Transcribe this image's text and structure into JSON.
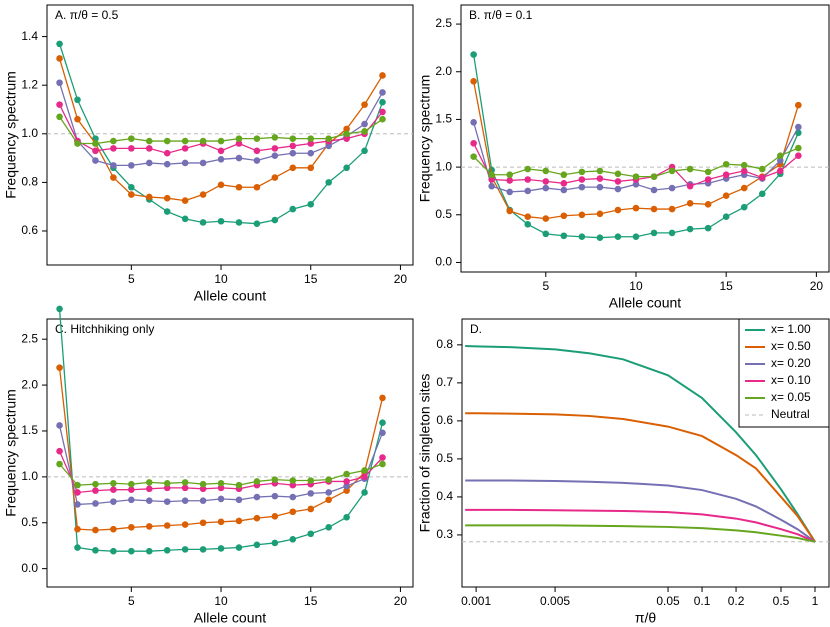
{
  "chart_data": [
    {
      "type": "line",
      "markers": true,
      "title": "A. π/θ = 0.5",
      "x_label": "Allele count",
      "y_label": "Frequency spectrum",
      "x": [
        1,
        2,
        3,
        4,
        5,
        6,
        7,
        8,
        9,
        10,
        11,
        12,
        13,
        14,
        15,
        16,
        17,
        18,
        19
      ],
      "xlim": [
        0.3,
        20.7
      ],
      "xticks": [
        5,
        10,
        15,
        20
      ],
      "ylim": [
        0.46,
        1.53
      ],
      "yticks": [
        0.6,
        0.8,
        {
          "value": 1,
          "label": "1.0"
        },
        1.2,
        1.4
      ],
      "reference_line": 1,
      "series": [
        {
          "color": "#1b9e77",
          "values": [
            1.37,
            1.14,
            0.98,
            0.86,
            0.78,
            0.73,
            0.68,
            0.65,
            0.635,
            0.64,
            0.635,
            0.63,
            0.645,
            0.69,
            0.71,
            0.8,
            0.86,
            0.93,
            1.13
          ]
        },
        {
          "color": "#d95f02",
          "values": [
            1.31,
            1.06,
            0.96,
            0.82,
            0.75,
            0.74,
            0.735,
            0.725,
            0.75,
            0.79,
            0.78,
            0.78,
            0.82,
            0.86,
            0.86,
            0.96,
            1.02,
            1.12,
            1.24
          ]
        },
        {
          "color": "#7570b3",
          "values": [
            1.21,
            0.97,
            0.89,
            0.87,
            0.87,
            0.88,
            0.875,
            0.88,
            0.88,
            0.895,
            0.9,
            0.89,
            0.91,
            0.92,
            0.92,
            0.95,
            0.99,
            1.04,
            1.17
          ]
        },
        {
          "color": "#e7298a",
          "values": [
            1.12,
            0.97,
            0.93,
            0.94,
            0.94,
            0.94,
            0.92,
            0.94,
            0.96,
            0.93,
            0.96,
            0.93,
            0.94,
            0.95,
            0.96,
            0.97,
            0.98,
            1.0,
            1.09
          ]
        },
        {
          "color": "#66a61e",
          "values": [
            1.07,
            0.96,
            0.96,
            0.97,
            0.98,
            0.97,
            0.97,
            0.97,
            0.97,
            0.97,
            0.98,
            0.98,
            0.985,
            0.98,
            0.98,
            0.98,
            1.0,
            1.01,
            1.06
          ]
        }
      ]
    },
    {
      "type": "line",
      "markers": true,
      "title": "B. π/θ = 0.1",
      "x_label": "Allele count",
      "y_label": "Frequency spectrum",
      "x": [
        1,
        2,
        3,
        4,
        5,
        6,
        7,
        8,
        9,
        10,
        11,
        12,
        13,
        14,
        15,
        16,
        17,
        18,
        19
      ],
      "xlim": [
        0.3,
        20.7
      ],
      "xticks": [
        5,
        10,
        15,
        20
      ],
      "ylim": [
        -0.1,
        2.7
      ],
      "yticks": [
        {
          "value": 0,
          "label": "0.0"
        },
        0.5,
        {
          "value": 1,
          "label": "1.0"
        },
        1.5,
        {
          "value": 2,
          "label": "2.0"
        },
        2.5
      ],
      "reference_line": 1,
      "series": [
        {
          "color": "#1b9e77",
          "values": [
            2.18,
            0.97,
            0.55,
            0.4,
            0.3,
            0.28,
            0.27,
            0.26,
            0.27,
            0.27,
            0.31,
            0.31,
            0.35,
            0.36,
            0.48,
            0.58,
            0.72,
            0.93,
            1.36
          ]
        },
        {
          "color": "#d95f02",
          "values": [
            1.9,
            0.9,
            0.54,
            0.48,
            0.46,
            0.49,
            0.5,
            0.51,
            0.55,
            0.57,
            0.56,
            0.56,
            0.62,
            0.61,
            0.7,
            0.78,
            0.9,
            1.03,
            1.65
          ]
        },
        {
          "color": "#7570b3",
          "values": [
            1.47,
            0.8,
            0.74,
            0.75,
            0.78,
            0.76,
            0.79,
            0.79,
            0.77,
            0.82,
            0.76,
            0.78,
            0.82,
            0.83,
            0.88,
            0.92,
            0.88,
            1.07,
            1.42
          ]
        },
        {
          "color": "#e7298a",
          "values": [
            1.25,
            0.87,
            0.86,
            0.87,
            0.85,
            0.83,
            0.87,
            0.88,
            0.85,
            0.87,
            0.9,
            1.0,
            0.8,
            0.87,
            0.92,
            0.96,
            0.89,
            0.96,
            1.12
          ]
        },
        {
          "color": "#66a61e",
          "values": [
            1.11,
            0.92,
            0.92,
            0.98,
            0.96,
            0.92,
            0.95,
            0.96,
            0.93,
            0.9,
            0.9,
            0.96,
            0.98,
            0.95,
            1.03,
            1.02,
            0.98,
            1.12,
            1.2
          ]
        }
      ]
    },
    {
      "type": "line",
      "markers": true,
      "title": "C. Hitchhiking only",
      "x_label": "Allele count",
      "y_label": "Frequency spectrum",
      "x": [
        1,
        2,
        3,
        4,
        5,
        6,
        7,
        8,
        9,
        10,
        11,
        12,
        13,
        14,
        15,
        16,
        17,
        18,
        19
      ],
      "xlim": [
        0.3,
        20.7
      ],
      "xticks": [
        5,
        10,
        15,
        20
      ],
      "ylim": [
        -0.2,
        2.72
      ],
      "yticks": [
        {
          "value": 0,
          "label": "0.0"
        },
        0.5,
        {
          "value": 1,
          "label": "1.0"
        },
        1.5,
        {
          "value": 2,
          "label": "2.0"
        },
        2.5
      ],
      "reference_line": 1,
      "series": [
        {
          "color": "#1b9e77",
          "values": [
            2.83,
            0.23,
            0.2,
            0.19,
            0.19,
            0.19,
            0.2,
            0.21,
            0.21,
            0.22,
            0.23,
            0.26,
            0.28,
            0.32,
            0.38,
            0.45,
            0.56,
            0.83,
            1.59
          ]
        },
        {
          "color": "#d95f02",
          "values": [
            2.19,
            0.43,
            0.42,
            0.43,
            0.45,
            0.46,
            0.47,
            0.48,
            0.5,
            0.51,
            0.52,
            0.55,
            0.57,
            0.62,
            0.65,
            0.75,
            0.85,
            1.05,
            1.86
          ]
        },
        {
          "color": "#7570b3",
          "values": [
            1.56,
            0.7,
            0.71,
            0.73,
            0.75,
            0.74,
            0.73,
            0.74,
            0.74,
            0.76,
            0.75,
            0.78,
            0.79,
            0.78,
            0.82,
            0.83,
            0.9,
            0.98,
            1.48
          ]
        },
        {
          "color": "#e7298a",
          "values": [
            1.28,
            0.83,
            0.85,
            0.86,
            0.86,
            0.87,
            0.88,
            0.88,
            0.87,
            0.88,
            0.87,
            0.91,
            0.93,
            0.91,
            0.92,
            0.95,
            0.95,
            1.0,
            1.21
          ]
        },
        {
          "color": "#66a61e",
          "values": [
            1.14,
            0.91,
            0.92,
            0.93,
            0.92,
            0.94,
            0.93,
            0.94,
            0.92,
            0.93,
            0.91,
            0.95,
            0.97,
            0.96,
            0.96,
            0.97,
            1.03,
            1.07,
            1.14
          ]
        }
      ]
    },
    {
      "type": "line",
      "markers": false,
      "title": "D.",
      "x_label": "π/θ",
      "y_label": "Fraction of singleton sites",
      "xscale": "log",
      "x": [
        0.0008,
        0.001,
        0.002,
        0.005,
        0.01,
        0.02,
        0.05,
        0.1,
        0.2,
        0.3,
        0.5,
        0.7,
        1
      ],
      "xlim": [
        0.00075,
        1.33
      ],
      "xticks": [
        0.001,
        0.005,
        0.05,
        0.1,
        0.2,
        0.5,
        1
      ],
      "ylim": [
        0.163,
        0.868
      ],
      "yticks": [
        0.3,
        0.4,
        0.5,
        0.6,
        0.7,
        0.8
      ],
      "reference_line": 0.282,
      "reference_label": "Neutral",
      "legend": "top-right",
      "series": [
        {
          "name": "x= 1.00",
          "color": "#1b9e77",
          "values": [
            0.797,
            0.796,
            0.794,
            0.788,
            0.778,
            0.762,
            0.72,
            0.66,
            0.57,
            0.51,
            0.42,
            0.355,
            0.282
          ]
        },
        {
          "name": "x= 0.50",
          "color": "#d95f02",
          "values": [
            0.62,
            0.62,
            0.619,
            0.617,
            0.613,
            0.605,
            0.585,
            0.56,
            0.51,
            0.475,
            0.4,
            0.35,
            0.282
          ]
        },
        {
          "name": "x= 0.20",
          "color": "#7570b3",
          "values": [
            0.443,
            0.443,
            0.443,
            0.442,
            0.44,
            0.437,
            0.43,
            0.418,
            0.395,
            0.375,
            0.34,
            0.315,
            0.282
          ]
        },
        {
          "name": "x= 0.10",
          "color": "#e7298a",
          "values": [
            0.366,
            0.366,
            0.366,
            0.365,
            0.364,
            0.363,
            0.36,
            0.354,
            0.343,
            0.333,
            0.315,
            0.302,
            0.282
          ]
        },
        {
          "name": "x= 0.05",
          "color": "#66a61e",
          "values": [
            0.325,
            0.325,
            0.325,
            0.325,
            0.324,
            0.323,
            0.321,
            0.318,
            0.312,
            0.307,
            0.298,
            0.292,
            0.282
          ]
        }
      ]
    }
  ]
}
